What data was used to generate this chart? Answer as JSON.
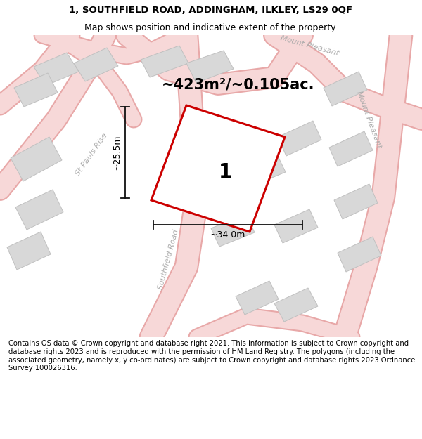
{
  "title_line1": "1, SOUTHFIELD ROAD, ADDINGHAM, ILKLEY, LS29 0QF",
  "title_line2": "Map shows position and indicative extent of the property.",
  "area_text": "~423m²/~0.105ac.",
  "dim_width": "~34.0m",
  "dim_height": "~25.5m",
  "label_number": "1",
  "footer_text": "Contains OS data © Crown copyright and database right 2021. This information is subject to Crown copyright and database rights 2023 and is reproduced with the permission of HM Land Registry. The polygons (including the associated geometry, namely x, y co-ordinates) are subject to Crown copyright and database rights 2023 Ordnance Survey 100026316.",
  "bg_color": "#efefef",
  "road_fill": "#f7d8d8",
  "road_edge": "#e8a8a8",
  "building_fill": "#d8d8d8",
  "building_edge": "#c0c0c0",
  "plot_color": "#cc0000",
  "plot_fill": "#ffffff",
  "dim_color": "#111111",
  "label_color": "#aaaaaa",
  "white": "#ffffff",
  "title_fs": 9.5,
  "footer_fs": 7.2,
  "area_fs": 15,
  "label_fs": 8,
  "number_fs": 20,
  "dim_fs": 9
}
